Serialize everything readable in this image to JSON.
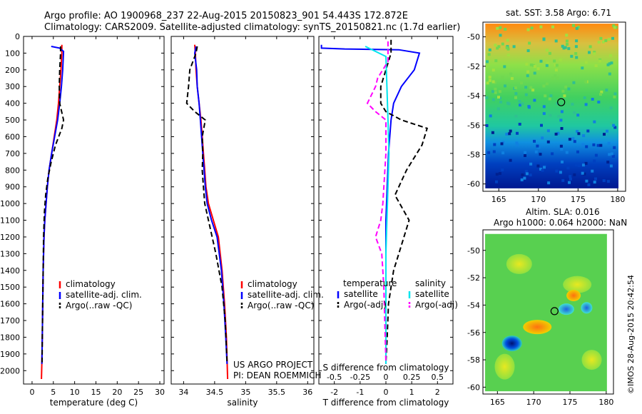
{
  "header": {
    "title_line1": "Argo profile: AO 1900968_237 22-Aug-2015 20150823_901 54.443S 172.872E",
    "title_line2": "Climatology: CARS2009. Satellite-adjusted climatology: synTS_20150821.nc (1.7d earlier)"
  },
  "sst_map_title": "sat. SST: 3.58 Argo: 6.71",
  "sla_map_title_line1": "Altim. SLA: 0.016",
  "sla_map_title_line2": "Argo h1000: 0.064 h2000: NaN",
  "imos_stamp": "©IMOS 28-Aug-2015 20:42:54",
  "project_credit_line1": "US ARGO PROJECT",
  "project_credit_line2": "PI: DEAN ROEMMICH",
  "colors": {
    "climatology": "#ff0000",
    "satellite": "#0000ff",
    "argo": "#000000",
    "sal_satellite": "#00e5ee",
    "sal_argo": "#ff00ff"
  },
  "chart_data": [
    {
      "type": "line",
      "name": "temperature",
      "xlabel": "temperature (deg C)",
      "ylabel": "",
      "xlim": [
        -2,
        31
      ],
      "ylim": [
        2080,
        0
      ],
      "xticks": [
        0,
        5,
        10,
        15,
        20,
        25,
        30
      ],
      "yticks": [
        0,
        100,
        200,
        300,
        400,
        500,
        600,
        700,
        800,
        900,
        1000,
        1100,
        1200,
        1300,
        1400,
        1500,
        1600,
        1700,
        1800,
        1900,
        2000
      ],
      "legend": [
        "climatology",
        "satellite-adj. clim.",
        "Argo(..raw -QC)"
      ],
      "legend_position": "lower-center",
      "series": [
        {
          "name": "climatology",
          "style": "solid",
          "x": [
            7.0,
            7.0,
            6.8,
            6.5,
            6.2,
            5.8,
            5.2,
            4.6,
            4.0,
            3.6,
            3.3,
            3.0,
            2.8,
            2.6,
            2.5,
            2.4,
            2.3,
            2.2
          ],
          "y": [
            50,
            100,
            200,
            300,
            400,
            500,
            600,
            700,
            800,
            900,
            1000,
            1100,
            1200,
            1400,
            1600,
            1800,
            1950,
            2050
          ]
        },
        {
          "name": "satellite-adj. clim.",
          "style": "solid",
          "x": [
            4.5,
            6.5,
            7.4,
            7.2,
            6.9,
            6.5,
            6.0,
            5.3,
            4.6,
            4.0,
            3.6,
            3.3,
            3.0,
            2.8,
            2.6,
            2.5,
            2.4,
            2.3
          ],
          "y": [
            60,
            70,
            90,
            200,
            300,
            400,
            500,
            600,
            700,
            800,
            900,
            1000,
            1100,
            1200,
            1400,
            1600,
            1800,
            1960
          ]
        },
        {
          "name": "Argo(..raw -QC)",
          "style": "dashed",
          "x": [
            6.7,
            6.7,
            6.5,
            6.4,
            6.5,
            7.4,
            7.0,
            5.5,
            4.5,
            3.7,
            3.2,
            2.9,
            2.7,
            2.6,
            2.5,
            2.4,
            2.35
          ],
          "y": [
            60,
            100,
            200,
            300,
            400,
            500,
            550,
            650,
            750,
            850,
            950,
            1050,
            1200,
            1400,
            1600,
            1800,
            1950
          ]
        }
      ]
    },
    {
      "type": "line",
      "name": "salinity",
      "xlabel": "salinity",
      "ylabel": "",
      "xlim": [
        33.8,
        36.1
      ],
      "ylim": [
        2080,
        0
      ],
      "xticks": [
        34,
        34.5,
        35,
        35.5,
        36
      ],
      "legend": [
        "climatology",
        "satellite-adj. clim.",
        "Argo(..raw -QC)"
      ],
      "legend_position": "lower-right",
      "series": [
        {
          "name": "climatology",
          "style": "solid",
          "x": [
            34.18,
            34.19,
            34.2,
            34.22,
            34.25,
            34.28,
            34.3,
            34.32,
            34.34,
            34.36,
            34.4,
            34.48,
            34.56,
            34.62,
            34.66,
            34.69,
            34.71
          ],
          "y": [
            50,
            100,
            200,
            300,
            400,
            500,
            600,
            700,
            800,
            900,
            1000,
            1100,
            1200,
            1400,
            1600,
            1800,
            2050
          ]
        },
        {
          "name": "satellite-adj. clim.",
          "style": "solid",
          "x": [
            34.2,
            34.18,
            34.21,
            34.22,
            34.25,
            34.27,
            34.29,
            34.31,
            34.33,
            34.35,
            34.38,
            34.45,
            34.54,
            34.61,
            34.65,
            34.68,
            34.7
          ],
          "y": [
            60,
            100,
            200,
            300,
            400,
            500,
            600,
            700,
            800,
            900,
            1000,
            1100,
            1200,
            1400,
            1600,
            1800,
            1960
          ]
        },
        {
          "name": "Argo(..raw -QC)",
          "style": "dashed",
          "x": [
            34.22,
            34.2,
            34.1,
            34.08,
            34.05,
            34.18,
            34.35,
            34.3,
            34.31,
            34.3,
            34.32,
            34.34,
            34.4,
            34.52,
            34.62,
            34.67,
            34.7
          ],
          "y": [
            60,
            100,
            200,
            300,
            400,
            450,
            500,
            600,
            700,
            800,
            900,
            1000,
            1100,
            1300,
            1500,
            1700,
            1950
          ]
        }
      ]
    },
    {
      "type": "line",
      "name": "difference from climatology",
      "xlabel": "T difference from climatology",
      "xlabel_top": "S difference from climatology",
      "xlim": [
        -2.6,
        2.6
      ],
      "ylim": [
        2080,
        0
      ],
      "xticks": [
        -2,
        -1,
        0,
        1,
        2
      ],
      "xticks_top": [
        -0.5,
        -0.25,
        0,
        0.25,
        0.5
      ],
      "legend_headers": [
        "temperature",
        "salinity"
      ],
      "legend": [
        "satellite",
        "Argo(-adj)",
        "satellite",
        "Argo(-adj)"
      ],
      "legend_position": "lower-center",
      "series": [
        {
          "name": "temperature satellite",
          "style": "solid",
          "x": [
            -2.5,
            -2.5,
            -1.6,
            0.5,
            1.3,
            1.1,
            0.6,
            0.3,
            0.2,
            0.1,
            0.05,
            0.0,
            0.0,
            0.0,
            0.0,
            0.0
          ],
          "y": [
            50,
            70,
            75,
            80,
            100,
            200,
            300,
            400,
            500,
            700,
            900,
            1100,
            1300,
            1500,
            1700,
            1960
          ]
        },
        {
          "name": "temperature Argo(-adj)",
          "style": "dashed",
          "x": [
            0.2,
            0.2,
            0.0,
            -0.2,
            -0.2,
            0.0,
            0.6,
            1.6,
            1.4,
            0.8,
            0.35,
            0.9,
            0.5,
            0.3,
            0.1,
            0.05,
            0.0
          ],
          "y": [
            20,
            100,
            200,
            300,
            400,
            450,
            500,
            550,
            650,
            800,
            950,
            1100,
            1300,
            1400,
            1600,
            1800,
            1950
          ]
        },
        {
          "name": "salinity satellite",
          "style": "solid",
          "x": [
            -0.2,
            0.0,
            0.01,
            0.02,
            0.03,
            0.02,
            0.01,
            0.0,
            0.0,
            0.0,
            0.0
          ],
          "y": [
            60,
            120,
            300,
            500,
            700,
            900,
            1100,
            1300,
            1500,
            1700,
            1960
          ]
        },
        {
          "name": "salinity Argo(-adj)",
          "style": "dashed",
          "x": [
            0.02,
            0.02,
            -0.08,
            -0.1,
            -0.18,
            -0.1,
            0.0,
            0.0,
            -0.02,
            -0.03,
            -0.05,
            -0.1,
            -0.04,
            -0.02,
            0.0
          ],
          "y": [
            30,
            150,
            250,
            300,
            400,
            450,
            500,
            700,
            900,
            1000,
            1100,
            1200,
            1300,
            1500,
            1950
          ]
        }
      ]
    },
    {
      "type": "heatmap",
      "name": "satellite SST map",
      "title": "sat. SST: 3.58 Argo: 6.71",
      "xlim": [
        163,
        181
      ],
      "ylim": [
        -60.5,
        -49
      ],
      "xticks": [
        165,
        170,
        175,
        180
      ],
      "yticks": [
        -50,
        -52,
        -54,
        -56,
        -58,
        -60
      ],
      "argo_position": {
        "lon": 172.872,
        "lat": -54.443
      }
    },
    {
      "type": "heatmap",
      "name": "altimetry SLA map",
      "title": "Altim. SLA: 0.016",
      "subtitle": "Argo h1000: 0.064 h2000: NaN",
      "xlim": [
        163,
        181
      ],
      "ylim": [
        -60.5,
        -48.5
      ],
      "xticks": [
        165,
        170,
        175,
        180
      ],
      "yticks": [
        -50,
        -52,
        -54,
        -56,
        -58,
        -60
      ],
      "argo_position": {
        "lon": 172.872,
        "lat": -54.443
      }
    }
  ]
}
